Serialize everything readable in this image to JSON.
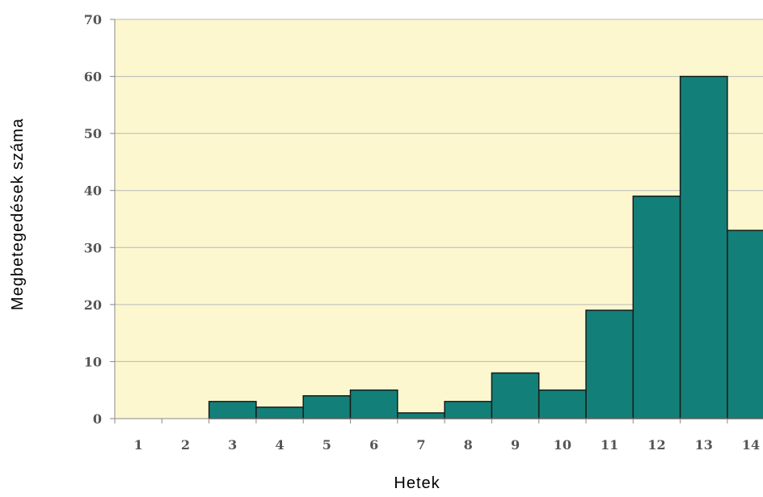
{
  "chart_data": {
    "type": "bar",
    "title": "",
    "xlabel": "Hetek",
    "ylabel": "Megbetegedések száma",
    "categories": [
      "1",
      "2",
      "3",
      "4",
      "5",
      "6",
      "7",
      "8",
      "9",
      "10",
      "11",
      "12",
      "13",
      "14"
    ],
    "values": [
      0,
      0,
      3,
      2,
      4,
      5,
      1,
      3,
      8,
      5,
      19,
      39,
      60,
      33
    ],
    "ylim": [
      0,
      70
    ],
    "yticks": [
      0,
      10,
      20,
      30,
      40,
      50,
      60,
      70
    ],
    "grid": true,
    "legend": "none",
    "colors": {
      "bar": "#128078",
      "bar_edge": "#1b1b1b",
      "plot_background": "#fcf7cf",
      "gridline": "#b8b8b8"
    }
  }
}
